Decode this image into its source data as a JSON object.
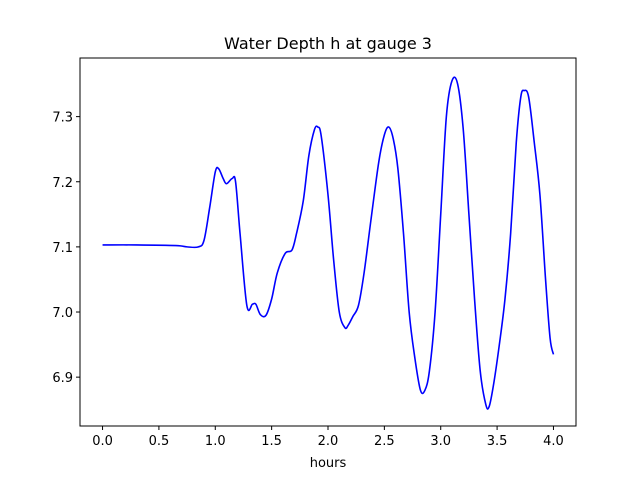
{
  "chart_data": {
    "type": "line",
    "title": "Water Depth h at gauge 3",
    "xlabel": "hours",
    "ylabel": "",
    "xlim": [
      -0.2,
      4.2
    ],
    "ylim": [
      6.825,
      7.39
    ],
    "grid": false,
    "legend": "none",
    "x_ticks": [
      0.0,
      0.5,
      1.0,
      1.5,
      2.0,
      2.5,
      3.0,
      3.5,
      4.0
    ],
    "x_tick_labels": [
      "0.0",
      "0.5",
      "1.0",
      "1.5",
      "2.0",
      "2.5",
      "3.0",
      "3.5",
      "4.0"
    ],
    "y_ticks": [
      6.9,
      7.0,
      7.1,
      7.2,
      7.3
    ],
    "y_tick_labels": [
      "6.9",
      "7.0",
      "7.1",
      "7.2",
      "7.3"
    ],
    "series": [
      {
        "color": "#0000ff",
        "x": [
          0.0,
          0.3,
          0.65,
          0.75,
          0.85,
          0.9,
          0.95,
          1.0,
          1.03,
          1.07,
          1.1,
          1.15,
          1.18,
          1.22,
          1.28,
          1.33,
          1.36,
          1.4,
          1.45,
          1.5,
          1.55,
          1.62,
          1.68,
          1.72,
          1.78,
          1.83,
          1.88,
          1.91,
          1.94,
          2.0,
          2.05,
          2.1,
          2.15,
          2.18,
          2.22,
          2.27,
          2.32,
          2.38,
          2.45,
          2.5,
          2.54,
          2.58,
          2.62,
          2.67,
          2.72,
          2.77,
          2.82,
          2.86,
          2.9,
          2.95,
          3.0,
          3.05,
          3.1,
          3.15,
          3.2,
          3.25,
          3.3,
          3.35,
          3.4,
          3.43,
          3.47,
          3.52,
          3.57,
          3.62,
          3.67,
          3.71,
          3.74,
          3.78,
          3.83,
          3.88,
          3.93,
          3.97,
          4.0
        ],
        "y": [
          7.103,
          7.103,
          7.102,
          7.1,
          7.1,
          7.11,
          7.16,
          7.215,
          7.22,
          7.205,
          7.197,
          7.205,
          7.2,
          7.12,
          7.01,
          7.012,
          7.012,
          6.996,
          6.995,
          7.02,
          7.06,
          7.09,
          7.095,
          7.12,
          7.17,
          7.24,
          7.28,
          7.284,
          7.27,
          7.18,
          7.08,
          7.0,
          6.976,
          6.98,
          6.993,
          7.01,
          7.06,
          7.14,
          7.23,
          7.272,
          7.284,
          7.265,
          7.22,
          7.12,
          7.0,
          6.93,
          6.88,
          6.88,
          6.91,
          7.0,
          7.15,
          7.3,
          7.355,
          7.35,
          7.28,
          7.15,
          7.02,
          6.91,
          6.858,
          6.855,
          6.89,
          6.95,
          7.02,
          7.12,
          7.26,
          7.33,
          7.34,
          7.33,
          7.26,
          7.18,
          7.05,
          6.96,
          6.935
        ]
      }
    ]
  }
}
